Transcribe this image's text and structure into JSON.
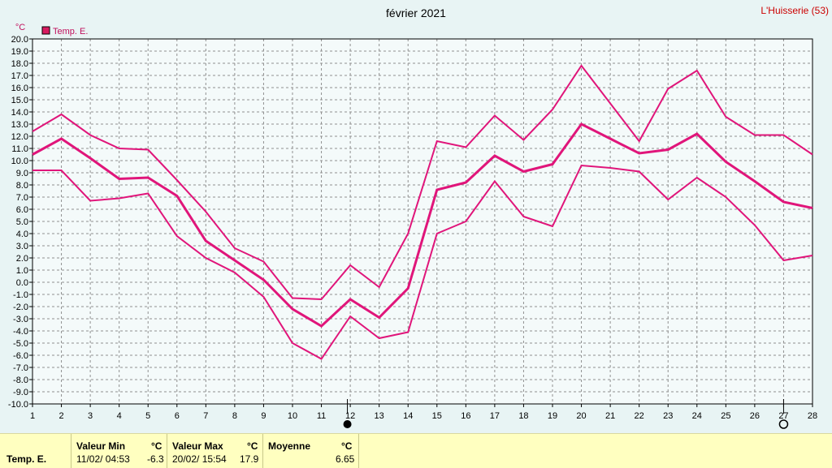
{
  "header": {
    "title": "février 2021",
    "location": "L'Huisserie (53)"
  },
  "legend": {
    "label": "Temp. E.",
    "color": "#d81b60"
  },
  "colors": {
    "series": "#e0157a",
    "background": "#e8f4f4",
    "stats_background": "#ffffc0"
  },
  "chart_data": {
    "type": "line",
    "title": "février 2021",
    "ylabel": "°C",
    "xlabel": "",
    "ylim": [
      -10,
      20
    ],
    "xlim": [
      1,
      28
    ],
    "y_ticks": [
      "-10.0",
      "-9.0",
      "-8.0",
      "-7.0",
      "-6.0",
      "-5.0",
      "-4.0",
      "-3.0",
      "-2.0",
      "-1.0",
      "0.0",
      "1.0",
      "2.0",
      "3.0",
      "4.0",
      "5.0",
      "6.0",
      "7.0",
      "8.0",
      "9.0",
      "10.0",
      "11.0",
      "12.0",
      "13.0",
      "14.0",
      "15.0",
      "16.0",
      "17.0",
      "18.0",
      "19.0",
      "20.0"
    ],
    "x_ticks": [
      "1",
      "2",
      "3",
      "4",
      "5",
      "6",
      "7",
      "8",
      "9",
      "10",
      "11",
      "12",
      "13",
      "14",
      "15",
      "16",
      "17",
      "18",
      "19",
      "20",
      "21",
      "22",
      "23",
      "24",
      "25",
      "26",
      "27",
      "28"
    ],
    "grid": true,
    "legend_position": "top-left",
    "x": [
      1,
      2,
      3,
      4,
      5,
      6,
      7,
      8,
      9,
      10,
      11,
      12,
      13,
      14,
      15,
      16,
      17,
      18,
      19,
      20,
      21,
      22,
      23,
      24,
      25,
      26,
      27,
      28
    ],
    "series": [
      {
        "name": "Temp. E.",
        "role": "max",
        "values": [
          12.4,
          13.8,
          12.1,
          11.0,
          10.9,
          8.4,
          5.8,
          2.8,
          1.7,
          -1.3,
          -1.4,
          1.4,
          -0.4,
          4.0,
          11.6,
          11.1,
          13.7,
          11.7,
          14.2,
          17.8,
          14.7,
          11.6,
          15.9,
          17.4,
          13.6,
          12.1,
          12.1,
          10.5
        ]
      },
      {
        "name": "Temp. E.",
        "role": "mean",
        "values": [
          10.5,
          11.8,
          10.2,
          8.5,
          8.6,
          7.1,
          3.4,
          1.8,
          0.2,
          -2.2,
          -3.6,
          -1.4,
          -2.9,
          -0.5,
          7.6,
          8.2,
          10.4,
          9.1,
          9.7,
          13.0,
          11.8,
          10.6,
          10.9,
          12.2,
          9.9,
          8.3,
          6.6,
          6.1
        ]
      },
      {
        "name": "Temp. E.",
        "role": "min",
        "values": [
          9.2,
          9.2,
          6.7,
          6.9,
          7.3,
          3.8,
          2.0,
          0.8,
          -1.2,
          -5.0,
          -6.3,
          -2.8,
          -4.6,
          -4.1,
          4.0,
          5.0,
          8.3,
          5.4,
          4.6,
          9.6,
          9.4,
          9.1,
          6.8,
          8.6,
          7.0,
          4.7,
          1.8,
          2.2
        ]
      }
    ],
    "markers": [
      {
        "type": "new-moon",
        "x": 11.9
      },
      {
        "type": "full-moon",
        "x": 27
      }
    ]
  },
  "stats": {
    "series_label": "Temp. E.",
    "min": {
      "header": "Valeur Min",
      "unit": "°C",
      "date": "11/02/ 04:53",
      "value": "-6.3"
    },
    "max": {
      "header": "Valeur Max",
      "unit": "°C",
      "date": "20/02/ 15:54",
      "value": "17.9"
    },
    "mean": {
      "header": "Moyenne",
      "unit": "°C",
      "value": "6.65"
    }
  }
}
